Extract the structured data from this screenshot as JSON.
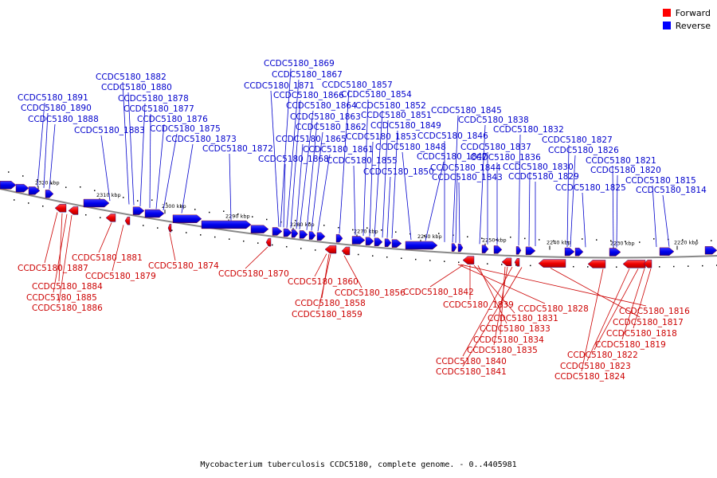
{
  "legend": {
    "forward_label": "Forward",
    "reverse_label": "Reverse",
    "forward_color": "#ff0000",
    "reverse_color": "#0000ff"
  },
  "caption": "Mycobacterium tuberculosis CCDC5180, complete genome. - 0..4405981",
  "tick_labels": [
    "2320 kbp",
    "2310 kbp",
    "2300 kbp",
    "2290 kbp",
    "2280 kbp",
    "2270 kbp",
    "2260 kbp",
    "2250 kbp",
    "2240 kbp",
    "2230 kbp",
    "2220 kbp"
  ],
  "reverse_genes": [
    "CCDC5180_1891",
    "CCDC5180_1890",
    "CCDC5180_1888",
    "CCDC5180_1883",
    "CCDC5180_1882",
    "CCDC5180_1880",
    "CCDC5180_1878",
    "CCDC5180_1877",
    "CCDC5180_1876",
    "CCDC5180_1875",
    "CCDC5180_1873",
    "CCDC5180_1872",
    "CCDC5180_1871",
    "CCDC5180_1869",
    "CCDC5180_1868",
    "CCDC5180_1867",
    "CCDC5180_1866",
    "CCDC5180_1865",
    "CCDC5180_1864",
    "CCDC5180_1863",
    "CCDC5180_1862",
    "CCDC5180_1861",
    "CCDC5180_1857",
    "CCDC5180_1855",
    "CCDC5180_1854",
    "CCDC5180_1853",
    "CCDC5180_1852",
    "CCDC5180_1851",
    "CCDC5180_1850",
    "CCDC5180_1849",
    "CCDC5180_1848",
    "CCDC5180_1847",
    "CCDC5180_1846",
    "CCDC5180_1845",
    "CCDC5180_1844",
    "CCDC5180_1843",
    "CCDC5180_1838",
    "CCDC5180_1837",
    "CCDC5180_1836",
    "CCDC5180_1832",
    "CCDC5180_1830",
    "CCDC5180_1829",
    "CCDC5180_1827",
    "CCDC5180_1826",
    "CCDC5180_1825",
    "CCDC5180_1821",
    "CCDC5180_1820",
    "CCDC5180_1815",
    "CCDC5180_1814"
  ],
  "forward_genes": [
    "CCDC5180_1887",
    "CCDC5180_1884",
    "CCDC5180_1885",
    "CCDC5180_1886",
    "CCDC5180_1881",
    "CCDC5180_1879",
    "CCDC5180_1874",
    "CCDC5180_1870",
    "CCDC5180_1860",
    "CCDC5180_1858",
    "CCDC5180_1859",
    "CCDC5180_1856",
    "CCDC5180_1842",
    "CCDC5180_1839",
    "CCDC5180_1831",
    "CCDC5180_1833",
    "CCDC5180_1834",
    "CCDC5180_1835",
    "CCDC5180_1840",
    "CCDC5180_1841",
    "CCDC5180_1828",
    "CCDC5180_1816",
    "CCDC5180_1817",
    "CCDC5180_1818",
    "CCDC5180_1819",
    "CCDC5180_1822",
    "CCDC5180_1823",
    "CCDC5180_1824"
  ]
}
